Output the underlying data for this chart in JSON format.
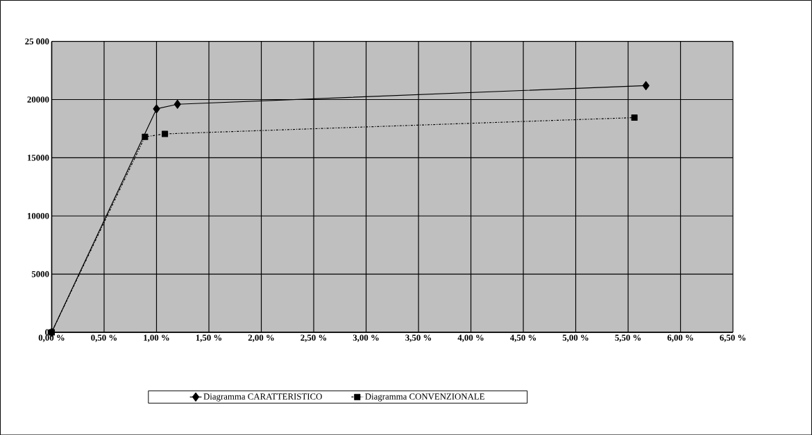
{
  "chart_data": {
    "type": "line",
    "xlim": [
      0,
      6.5
    ],
    "ylim": [
      0,
      25000
    ],
    "xticks": [
      {
        "value": 0,
        "label": "0,00 %"
      },
      {
        "value": 0.5,
        "label": "0,50 %"
      },
      {
        "value": 1,
        "label": "1,00 %"
      },
      {
        "value": 1.5,
        "label": "1,50 %"
      },
      {
        "value": 2,
        "label": "2,00 %"
      },
      {
        "value": 2.5,
        "label": "2,50 %"
      },
      {
        "value": 3,
        "label": "3,00 %"
      },
      {
        "value": 3.5,
        "label": "3,50 %"
      },
      {
        "value": 4,
        "label": "4,00 %"
      },
      {
        "value": 4.5,
        "label": "4,50 %"
      },
      {
        "value": 5,
        "label": "5,00 %"
      },
      {
        "value": 5.5,
        "label": "5,50 %"
      },
      {
        "value": 6,
        "label": "6,00 %"
      },
      {
        "value": 6.5,
        "label": "6,50 %"
      }
    ],
    "yticks": [
      0,
      5000,
      10000,
      15000,
      20000,
      {
        "value": 25000,
        "label": "25 000"
      }
    ],
    "grid": true,
    "legend": "bottom",
    "series": [
      {
        "name": "Diagramma CARATTERISTICO",
        "color": "#000000",
        "marker": "diamond",
        "line_style": "solid",
        "x": [
          0,
          1.0,
          1.2,
          5.67
        ],
        "values": [
          0,
          19200,
          19600,
          21200
        ]
      },
      {
        "name": "Diagramma CONVENZIONALE",
        "color": "#000000",
        "marker": "square",
        "line_style": "dashed",
        "x": [
          0,
          0.89,
          1.08,
          5.56
        ],
        "values": [
          0,
          16800,
          17050,
          18450
        ]
      }
    ]
  }
}
